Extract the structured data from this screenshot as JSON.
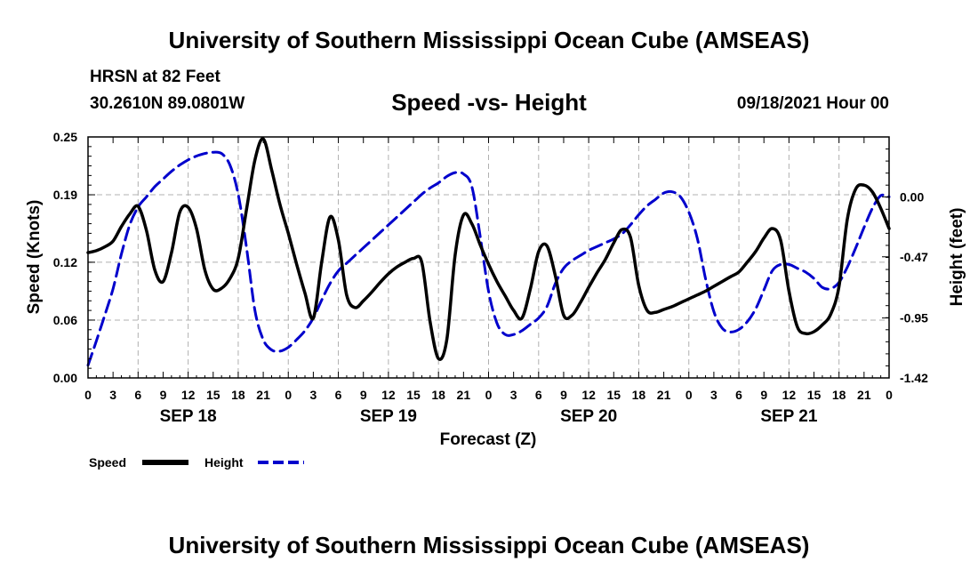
{
  "header": {
    "title": "University of Southern Mississippi Ocean Cube (AMSEAS)",
    "station": "HRSN at 82 Feet",
    "coordinates": "30.2610N  89.0801W",
    "plot_title": "Speed -vs- Height",
    "datetime": "09/18/2021 Hour 00"
  },
  "footer": {
    "title": "University of Southern Mississippi Ocean Cube (AMSEAS)"
  },
  "colors": {
    "speed": "#000000",
    "height": "#0000cc",
    "grid": "#b0b0b0"
  },
  "chart_data": {
    "type": "line",
    "xlabel": "Forecast (Z)",
    "ylabel": "Speed (Knots)",
    "ylabel_right": "Height (feet)",
    "x_units": "forecast hour",
    "xlim": [
      0,
      96
    ],
    "ylim": [
      0.0,
      0.25
    ],
    "ylim_right": [
      -1.42,
      0.47
    ],
    "y_ticks": [
      "0.00",
      "0.06",
      "0.12",
      "0.19",
      "0.25"
    ],
    "y_tick_values": [
      0.0,
      0.06,
      0.12,
      0.19,
      0.25
    ],
    "y_right_ticks": [
      "-1.42",
      "-0.95",
      "-0.47",
      "0.00"
    ],
    "y_right_tick_values": [
      -1.42,
      -0.95,
      -0.47,
      0.0
    ],
    "x_ticks": [
      {
        "hour": 0,
        "label": "0"
      },
      {
        "hour": 3,
        "label": "3"
      },
      {
        "hour": 6,
        "label": "6"
      },
      {
        "hour": 9,
        "label": "9"
      },
      {
        "hour": 12,
        "label": "12"
      },
      {
        "hour": 15,
        "label": "15"
      },
      {
        "hour": 18,
        "label": "18"
      },
      {
        "hour": 21,
        "label": "21"
      },
      {
        "hour": 24,
        "label": "0"
      },
      {
        "hour": 27,
        "label": "3"
      },
      {
        "hour": 30,
        "label": "6"
      },
      {
        "hour": 33,
        "label": "9"
      },
      {
        "hour": 36,
        "label": "12"
      },
      {
        "hour": 39,
        "label": "15"
      },
      {
        "hour": 42,
        "label": "18"
      },
      {
        "hour": 45,
        "label": "21"
      },
      {
        "hour": 48,
        "label": "0"
      },
      {
        "hour": 51,
        "label": "3"
      },
      {
        "hour": 54,
        "label": "6"
      },
      {
        "hour": 57,
        "label": "9"
      },
      {
        "hour": 60,
        "label": "12"
      },
      {
        "hour": 63,
        "label": "15"
      },
      {
        "hour": 66,
        "label": "18"
      },
      {
        "hour": 69,
        "label": "21"
      },
      {
        "hour": 72,
        "label": "0"
      },
      {
        "hour": 75,
        "label": "3"
      },
      {
        "hour": 78,
        "label": "6"
      },
      {
        "hour": 81,
        "label": "9"
      },
      {
        "hour": 84,
        "label": "12"
      },
      {
        "hour": 87,
        "label": "15"
      },
      {
        "hour": 90,
        "label": "18"
      },
      {
        "hour": 93,
        "label": "21"
      },
      {
        "hour": 96,
        "label": "0"
      }
    ],
    "date_labels": [
      {
        "hour": 12,
        "label": "SEP 18"
      },
      {
        "hour": 36,
        "label": "SEP 19"
      },
      {
        "hour": 60,
        "label": "SEP 20"
      },
      {
        "hour": 84,
        "label": "SEP 21"
      }
    ],
    "legend": {
      "placement": "bottom-left",
      "speed_label": "Speed",
      "height_label": "Height"
    },
    "series": [
      {
        "name": "Speed",
        "axis": "left",
        "style": "solid",
        "x": [
          0,
          1,
          2,
          3,
          4,
          5,
          6,
          7,
          8,
          9,
          10,
          11,
          12,
          13,
          14,
          15,
          16,
          17,
          18,
          19,
          20,
          21,
          22,
          23,
          24,
          25,
          26,
          27,
          28,
          29,
          30,
          31,
          32,
          33,
          34,
          35,
          36,
          37,
          38,
          39,
          40,
          41,
          42,
          43,
          44,
          45,
          46,
          47,
          48,
          49,
          50,
          51,
          52,
          53,
          54,
          55,
          56,
          57,
          58,
          59,
          60,
          61,
          62,
          63,
          64,
          65,
          66,
          67,
          68,
          69,
          70,
          71,
          72,
          73,
          74,
          75,
          76,
          77,
          78,
          79,
          80,
          81,
          82,
          83,
          84,
          85,
          86,
          87,
          88,
          89,
          90,
          91,
          92,
          93,
          94,
          95,
          96
        ],
        "y": [
          0.13,
          0.132,
          0.136,
          0.142,
          0.157,
          0.17,
          0.178,
          0.153,
          0.112,
          0.1,
          0.13,
          0.172,
          0.177,
          0.155,
          0.112,
          0.092,
          0.093,
          0.103,
          0.124,
          0.175,
          0.226,
          0.248,
          0.216,
          0.18,
          0.15,
          0.118,
          0.088,
          0.062,
          0.12,
          0.167,
          0.143,
          0.086,
          0.073,
          0.08,
          0.089,
          0.099,
          0.108,
          0.115,
          0.12,
          0.124,
          0.12,
          0.058,
          0.02,
          0.04,
          0.128,
          0.169,
          0.16,
          0.138,
          0.118,
          0.1,
          0.085,
          0.07,
          0.062,
          0.092,
          0.131,
          0.137,
          0.106,
          0.065,
          0.065,
          0.078,
          0.094,
          0.109,
          0.123,
          0.14,
          0.154,
          0.146,
          0.096,
          0.07,
          0.068,
          0.071,
          0.074,
          0.078,
          0.082,
          0.086,
          0.09,
          0.095,
          0.1,
          0.105,
          0.11,
          0.12,
          0.131,
          0.145,
          0.155,
          0.143,
          0.09,
          0.053,
          0.046,
          0.048,
          0.055,
          0.066,
          0.095,
          0.165,
          0.196,
          0.2,
          0.193,
          0.176,
          0.155
        ]
      },
      {
        "name": "Height",
        "axis": "right",
        "style": "dashed",
        "x": [
          0,
          1,
          2,
          3,
          4,
          5,
          6,
          7,
          8,
          9,
          10,
          11,
          12,
          13,
          14,
          15,
          16,
          17,
          18,
          19,
          20,
          21,
          22,
          23,
          24,
          25,
          26,
          27,
          28,
          29,
          30,
          31,
          32,
          33,
          34,
          35,
          36,
          37,
          38,
          39,
          40,
          41,
          42,
          43,
          44,
          45,
          46,
          47,
          48,
          49,
          50,
          51,
          52,
          53,
          54,
          55,
          56,
          57,
          58,
          59,
          60,
          61,
          62,
          63,
          64,
          65,
          66,
          67,
          68,
          69,
          70,
          71,
          72,
          73,
          74,
          75,
          76,
          77,
          78,
          79,
          80,
          81,
          82,
          83,
          84,
          85,
          86,
          87,
          88,
          89,
          90,
          91,
          92,
          93,
          94,
          95,
          96
        ],
        "y": [
          -1.32,
          -1.13,
          -0.93,
          -0.72,
          -0.45,
          -0.22,
          -0.08,
          0.0,
          0.08,
          0.14,
          0.2,
          0.25,
          0.29,
          0.32,
          0.34,
          0.35,
          0.34,
          0.25,
          0.02,
          -0.4,
          -0.89,
          -1.12,
          -1.2,
          -1.21,
          -1.18,
          -1.12,
          -1.05,
          -0.95,
          -0.81,
          -0.68,
          -0.58,
          -0.52,
          -0.46,
          -0.4,
          -0.34,
          -0.28,
          -0.22,
          -0.16,
          -0.1,
          -0.04,
          0.02,
          0.07,
          0.11,
          0.16,
          0.19,
          0.18,
          0.08,
          -0.31,
          -0.74,
          -0.99,
          -1.08,
          -1.08,
          -1.05,
          -1.0,
          -0.95,
          -0.86,
          -0.68,
          -0.56,
          -0.5,
          -0.46,
          -0.42,
          -0.39,
          -0.36,
          -0.33,
          -0.29,
          -0.22,
          -0.14,
          -0.07,
          -0.02,
          0.03,
          0.04,
          0.0,
          -0.12,
          -0.32,
          -0.64,
          -0.9,
          -1.03,
          -1.06,
          -1.04,
          -0.98,
          -0.88,
          -0.73,
          -0.58,
          -0.53,
          -0.53,
          -0.56,
          -0.59,
          -0.64,
          -0.71,
          -0.72,
          -0.67,
          -0.55,
          -0.4,
          -0.24,
          -0.09,
          0.01,
          0.0
        ]
      }
    ]
  }
}
